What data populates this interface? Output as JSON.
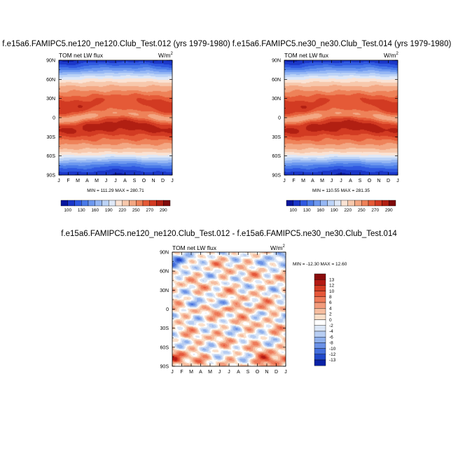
{
  "chart_data": [
    {
      "type": "heatmap",
      "title": "f.e15a6.FAMIPC5.ne120_ne120.Club_Test.012 (yrs 1979-1980)",
      "left_label": "TOM net LW flux",
      "units_base": "W/m",
      "units_exp": "2",
      "x_ticks": [
        "J",
        "F",
        "M",
        "A",
        "M",
        "J",
        "J",
        "A",
        "S",
        "O",
        "N",
        "D",
        "J"
      ],
      "y_ticks": [
        "90N",
        "60N",
        "30N",
        "0",
        "30S",
        "60S",
        "90S"
      ],
      "x_range": [
        0,
        12
      ],
      "y_range": [
        90,
        -90
      ],
      "min_max": "MIN = 111.29  MAX = 280.71",
      "min": 111.29,
      "max": 280.71
    },
    {
      "type": "heatmap",
      "title": "f.e15a6.FAMIPC5.ne30_ne30.Club_Test.014 (yrs 1979-1980)",
      "left_label": "TOM net LW flux",
      "units_base": "W/m",
      "units_exp": "2",
      "x_ticks": [
        "J",
        "F",
        "M",
        "A",
        "M",
        "J",
        "J",
        "A",
        "S",
        "O",
        "N",
        "D",
        "J"
      ],
      "y_ticks": [
        "90N",
        "60N",
        "30N",
        "0",
        "30S",
        "60S",
        "90S"
      ],
      "x_range": [
        0,
        12
      ],
      "y_range": [
        90,
        -90
      ],
      "min_max": "MIN = 110.55  MAX = 281.35",
      "min": 110.55,
      "max": 281.35
    },
    {
      "type": "heatmap",
      "title": "f.e15a6.FAMIPC5.ne120_ne120.Club_Test.012 - f.e15a6.FAMIPC5.ne30_ne30.Club_Test.014",
      "left_label": "TOM net LW flux",
      "units_base": "W/m",
      "units_exp": "2",
      "x_ticks": [
        "J",
        "F",
        "M",
        "A",
        "M",
        "J",
        "J",
        "A",
        "S",
        "O",
        "N",
        "D",
        "J"
      ],
      "y_ticks": [
        "90N",
        "60N",
        "30N",
        "0",
        "30S",
        "60S",
        "90S"
      ],
      "x_range": [
        0,
        12
      ],
      "y_range": [
        90,
        -90
      ],
      "min_max": "MIN = -12.30 MAX =  12.60",
      "min": -12.3,
      "max": 12.6
    }
  ],
  "colorbar_abs": {
    "labels": [
      "100",
      "130",
      "160",
      "190",
      "220",
      "250",
      "270",
      "290"
    ],
    "levels": [
      100,
      115,
      130,
      145,
      160,
      175,
      190,
      205,
      220,
      235,
      250,
      260,
      270,
      280,
      290
    ],
    "colors": [
      "#07159e",
      "#1a36c8",
      "#2f58e0",
      "#4a7ae8",
      "#6d98ef",
      "#95b7f4",
      "#bcd3f7",
      "#dfe8f7",
      "#fbe3d4",
      "#f7c8ac",
      "#f3a783",
      "#ee8259",
      "#e55a37",
      "#d23a22",
      "#b11f12",
      "#7f0a0a"
    ]
  },
  "colorbar_diff": {
    "labels": [
      "13",
      "12",
      "10",
      "8",
      "6",
      "4",
      "2",
      "0",
      "-2",
      "-4",
      "-6",
      "-8",
      "-10",
      "-12",
      "-13"
    ],
    "colors": [
      "#8a0b0b",
      "#b31a14",
      "#d33a22",
      "#e5573a",
      "#ee7b5a",
      "#f29b7c",
      "#f6bd9f",
      "#fadfc9",
      "#ffffff",
      "#dbe6f6",
      "#b7cdf2",
      "#8fb0ec",
      "#6a91e6",
      "#446fdd",
      "#2148c9",
      "#0a22a6"
    ]
  }
}
